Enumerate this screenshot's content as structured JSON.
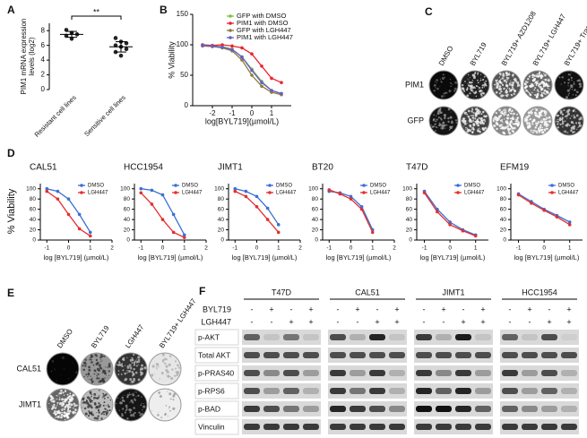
{
  "panel_labels": [
    "A",
    "B",
    "C",
    "D",
    "E",
    "F"
  ],
  "chart_data": [
    {
      "type": "dot",
      "ylabel": [
        "PIM1 mRNA expression",
        "levels (log2)"
      ],
      "categories": [
        "Resistant cell lines",
        "Sensitive cell lines"
      ],
      "values": [
        [
          8.1,
          7.7,
          7.5,
          7.3,
          6.9
        ],
        [
          7.0,
          6.5,
          6.3,
          6.0,
          5.8,
          5.5,
          5.1,
          4.6
        ]
      ],
      "means": [
        7.5,
        5.8
      ],
      "sd": [
        0.4,
        0.7
      ],
      "annotation": "**",
      "ylim": [
        0,
        9
      ],
      "yticks": [
        0,
        2,
        4,
        6,
        8
      ],
      "color": "#222222"
    },
    {
      "type": "line",
      "xlabel": "log[BYL719](µmol/L)",
      "ylabel": "% Viability",
      "x": [
        -2.5,
        -2,
        -1.5,
        -1,
        -0.5,
        0,
        0.5,
        1,
        1.5
      ],
      "series": [
        {
          "name": "GFP with DMSO",
          "color": "#7cc242",
          "values": [
            100,
            98,
            97,
            93,
            80,
            60,
            40,
            25,
            20
          ]
        },
        {
          "name": "PIM1 with DMSO",
          "color": "#e8242e",
          "values": [
            100,
            99,
            100,
            98,
            95,
            85,
            65,
            45,
            38
          ]
        },
        {
          "name": "GFP  with LGH447",
          "color": "#8b7d3a",
          "values": [
            98,
            97,
            95,
            90,
            75,
            50,
            32,
            22,
            18
          ]
        },
        {
          "name": "PIM1 with LGH447",
          "color": "#6a5acd",
          "values": [
            99,
            98,
            96,
            92,
            80,
            58,
            38,
            25,
            20
          ]
        }
      ],
      "xlim": [
        -3,
        2
      ],
      "xticks": [
        -2,
        -1,
        0,
        1
      ],
      "ylim": [
        0,
        150
      ],
      "yticks": [
        0,
        50,
        100,
        150
      ],
      "legend": "top-right"
    },
    {
      "type": "line",
      "title": "CAL51",
      "ylabel": "% Viability",
      "xlabel": "log [BYL719] (µmol/L)",
      "x": [
        -1,
        -0.5,
        0,
        0.5,
        1
      ],
      "series": [
        {
          "name": "DMSO",
          "color": "#3b6fd6",
          "values": [
            100,
            95,
            80,
            50,
            15
          ]
        },
        {
          "name": "LGH447",
          "color": "#e2302e",
          "values": [
            95,
            80,
            50,
            22,
            8
          ]
        }
      ],
      "xlim": [
        -1.3,
        2
      ],
      "xticks": [
        -1,
        0,
        1,
        2
      ],
      "ylim": [
        0,
        110
      ],
      "yticks": [
        0,
        20,
        40,
        60,
        80,
        100
      ],
      "legend": "top-right"
    },
    {
      "type": "line",
      "title": "HCC1954",
      "xlabel": "log [BYL719] (µmol/L)",
      "x": [
        -1,
        -0.5,
        0,
        0.5,
        1
      ],
      "series": [
        {
          "name": "DMSO",
          "color": "#3b6fd6",
          "values": [
            100,
            97,
            88,
            50,
            10
          ]
        },
        {
          "name": "LGH447",
          "color": "#e2302e",
          "values": [
            92,
            70,
            40,
            15,
            5
          ]
        }
      ],
      "xlim": [
        -1.3,
        2
      ],
      "xticks": [
        -1,
        0,
        1,
        2
      ],
      "ylim": [
        0,
        110
      ],
      "yticks": [
        0,
        20,
        40,
        60,
        80,
        100
      ],
      "legend": "top-right"
    },
    {
      "type": "line",
      "title": "JIMT1",
      "xlabel": "log [BYL719] (µmol/L)",
      "x": [
        -1,
        -0.5,
        0,
        0.5,
        1
      ],
      "series": [
        {
          "name": "DMSO",
          "color": "#3b6fd6",
          "values": [
            100,
            95,
            85,
            62,
            30
          ]
        },
        {
          "name": "LGH447",
          "color": "#e2302e",
          "values": [
            95,
            85,
            65,
            40,
            15
          ]
        }
      ],
      "xlim": [
        -1.3,
        2
      ],
      "xticks": [
        -1,
        0,
        1,
        2
      ],
      "ylim": [
        0,
        110
      ],
      "yticks": [
        0,
        20,
        40,
        60,
        80,
        100
      ],
      "legend": "top-right"
    },
    {
      "type": "line",
      "title": "BT20",
      "xlabel": "log [BYL719] (µmol/L)",
      "x": [
        -1,
        -0.5,
        0,
        0.5,
        1
      ],
      "series": [
        {
          "name": "DMSO",
          "color": "#3b6fd6",
          "values": [
            95,
            92,
            85,
            65,
            20
          ]
        },
        {
          "name": "LGH447",
          "color": "#e2302e",
          "values": [
            98,
            90,
            80,
            60,
            15
          ]
        }
      ],
      "xlim": [
        -1.3,
        2
      ],
      "xticks": [
        -1,
        0,
        1,
        2
      ],
      "ylim": [
        0,
        110
      ],
      "yticks": [
        0,
        20,
        40,
        60,
        80,
        100
      ],
      "legend": "top-right"
    },
    {
      "type": "line",
      "title": "T47D",
      "xlabel": "log [BYL719] (µmol/L)",
      "x": [
        -1,
        -0.5,
        0,
        0.5,
        1
      ],
      "series": [
        {
          "name": "DMSO",
          "color": "#3b6fd6",
          "values": [
            95,
            60,
            35,
            20,
            10
          ]
        },
        {
          "name": "LGH447",
          "color": "#e2302e",
          "values": [
            92,
            55,
            30,
            18,
            8
          ]
        }
      ],
      "xlim": [
        -1.3,
        1.5
      ],
      "xticks": [
        -1,
        0,
        1
      ],
      "ylim": [
        0,
        110
      ],
      "yticks": [
        0,
        20,
        40,
        60,
        80,
        100
      ],
      "legend": "top-right"
    },
    {
      "type": "line",
      "title": "EFM19",
      "xlabel": "log [BYL719] (µmol/L)",
      "x": [
        -1,
        -0.5,
        0,
        0.5,
        1
      ],
      "series": [
        {
          "name": "DMSO",
          "color": "#3b6fd6",
          "values": [
            90,
            75,
            60,
            48,
            35
          ]
        },
        {
          "name": "LGH447",
          "color": "#e2302e",
          "values": [
            88,
            72,
            58,
            45,
            30
          ]
        }
      ],
      "xlim": [
        -1.3,
        1.5
      ],
      "xticks": [
        -1,
        0,
        1
      ],
      "ylim": [
        0,
        110
      ],
      "yticks": [
        0,
        20,
        40,
        60,
        80,
        100
      ],
      "legend": "top-right"
    }
  ],
  "panel_c": {
    "columns": [
      "DMSO",
      "BYL719",
      "BYL719+ AZD1208",
      "BYL719+ LGH447",
      "BYL719+ Trametinib"
    ],
    "rows": [
      "PIM1",
      "GFP"
    ]
  },
  "panel_e": {
    "columns": [
      "DMSO",
      "BYL719",
      "LGH447",
      "BYL719+ LGH447"
    ],
    "rows": [
      "CAL51",
      "JIMT1"
    ]
  },
  "panel_f": {
    "groups": [
      "T47D",
      "CAL51",
      "JIMT1",
      "HCC1954"
    ],
    "treatments": [
      {
        "label": "BYL719",
        "signs": [
          "-",
          "+",
          "-",
          "+"
        ]
      },
      {
        "label": "LGH447",
        "signs": [
          "-",
          "-",
          "+",
          "+"
        ]
      }
    ],
    "blots": [
      "p-AKT",
      "Total AKT",
      "p-PRAS40",
      "p-RPS6",
      "p-BAD",
      "Vinculin"
    ]
  }
}
